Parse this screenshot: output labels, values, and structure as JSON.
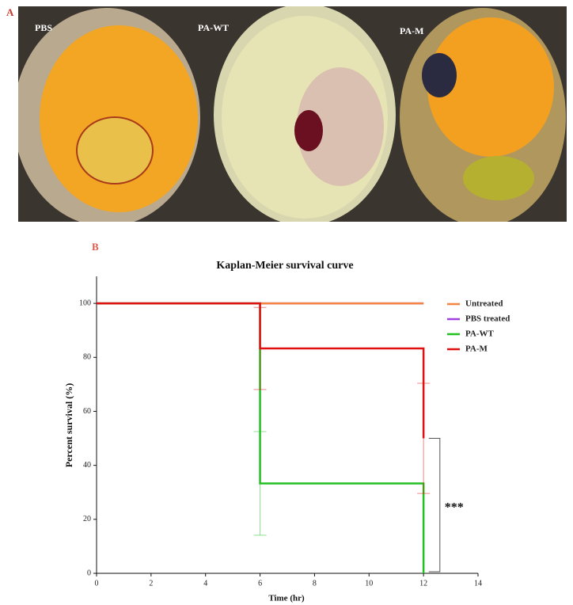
{
  "panel_a": {
    "label": "A",
    "photo_labels": [
      "PBS",
      "PA-WT",
      "PA-M"
    ]
  },
  "panel_b": {
    "label": "B"
  },
  "chart_data": {
    "type": "line",
    "title": "Kaplan-Meier survival curve",
    "x_label": "Time (hr)",
    "y_label": "Percent survival (%)",
    "xlim": [
      0,
      14
    ],
    "xticks": [
      0,
      2,
      4,
      6,
      8,
      10,
      12,
      14
    ],
    "ylim": [
      0,
      110
    ],
    "yticks": [
      0,
      20,
      40,
      60,
      80,
      100
    ],
    "step": true,
    "legend": "upper right",
    "annotation": "***",
    "series": [
      {
        "name": "PBS treated",
        "color": "#a040e0",
        "x": [
          0,
          12
        ],
        "values": [
          100,
          100
        ],
        "errors": [
          null,
          null
        ]
      },
      {
        "name": "Untreated",
        "color": "#f4843f",
        "x": [
          0,
          12
        ],
        "values": [
          100,
          100
        ],
        "errors": [
          null,
          null
        ]
      },
      {
        "name": "PA-WT",
        "color": "#22c022",
        "x": [
          0,
          6,
          6,
          12,
          12
        ],
        "values": [
          100,
          100,
          33.3,
          33.3,
          0
        ],
        "errors": [
          null,
          null,
          19.2,
          null,
          null
        ]
      },
      {
        "name": "PA-M",
        "color": "#e01010",
        "x": [
          0,
          6,
          6,
          12,
          12
        ],
        "values": [
          100,
          100,
          83.3,
          83.3,
          50
        ],
        "errors": [
          null,
          null,
          15.2,
          null,
          20.4
        ]
      }
    ],
    "legend_order": [
      1,
      0,
      2,
      3
    ]
  }
}
